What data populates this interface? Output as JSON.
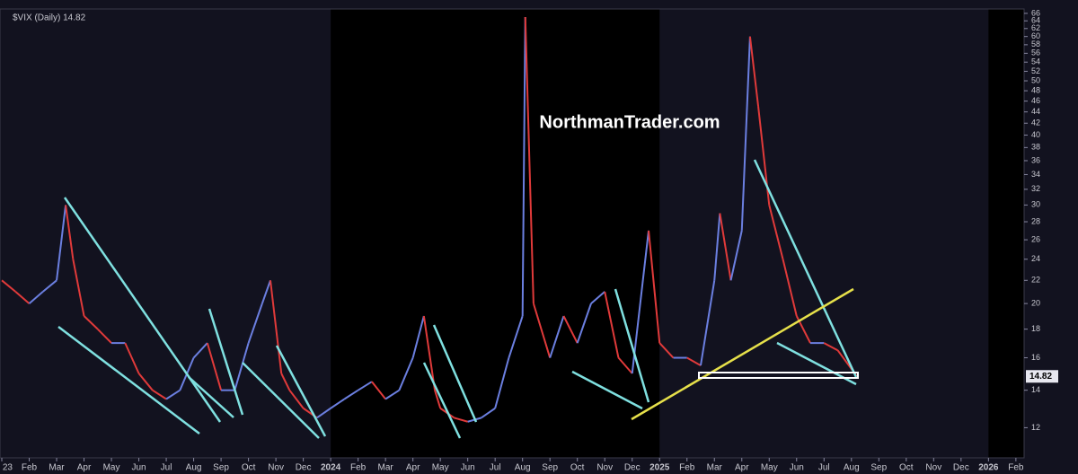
{
  "chart_data": {
    "type": "line",
    "title": "$VIX (Daily) 14.82",
    "annotation": "NorthmanTrader.com",
    "last_value": {
      "value": 14.82,
      "label": "14.82"
    },
    "log_scale": true,
    "series": [
      {
        "name": "$VIX",
        "up_color": "#6b7fe0",
        "down_color": "#e03a3a",
        "x": [
          0,
          0.5,
          1,
          1.5,
          2,
          2.33,
          2.6,
          3,
          3.5,
          4,
          4.5,
          5,
          5.5,
          6,
          6.5,
          7,
          7.5,
          8,
          8.5,
          9,
          9.5,
          9.8,
          10.2,
          10.5,
          11,
          11.5,
          12,
          12.5,
          13,
          13.5,
          14,
          14.5,
          15,
          15.4,
          15.8,
          16,
          16.5,
          17,
          17.5,
          18,
          18.5,
          19,
          19.1,
          19.4,
          20,
          20.5,
          21,
          21.5,
          22,
          22.5,
          23,
          23.6,
          24,
          24.5,
          25,
          25.5,
          26,
          26.2,
          26.6,
          27,
          27.3,
          27.6,
          28,
          28.5,
          29,
          29.5,
          30,
          30.5,
          31.2
        ],
        "values": [
          22,
          21,
          20,
          21,
          22,
          30,
          24,
          19,
          18,
          17,
          17,
          15,
          14,
          13.5,
          14,
          16,
          17,
          14,
          14,
          17,
          20,
          22,
          15,
          14,
          13,
          12.5,
          13,
          13.5,
          14,
          14.5,
          13.5,
          14,
          16,
          19,
          14,
          13,
          12.5,
          12.3,
          12.5,
          13,
          16,
          19,
          65,
          20,
          16,
          19,
          17,
          20,
          21,
          16,
          15,
          27,
          17,
          16,
          16,
          15.5,
          22,
          29,
          22,
          27,
          60,
          45,
          30,
          24,
          19,
          17,
          17,
          16.5,
          14.82
        ]
      }
    ],
    "xlim": [
      -0.066,
      37.3
    ],
    "xticks": [
      {
        "value": 0,
        "label": "23"
      },
      {
        "value": 1,
        "label": "Feb"
      },
      {
        "value": 2,
        "label": "Mar"
      },
      {
        "value": 3,
        "label": "Apr"
      },
      {
        "value": 4,
        "label": "May"
      },
      {
        "value": 5,
        "label": "Jun"
      },
      {
        "value": 6,
        "label": "Jul"
      },
      {
        "value": 7,
        "label": "Aug"
      },
      {
        "value": 8,
        "label": "Sep"
      },
      {
        "value": 9,
        "label": "Oct"
      },
      {
        "value": 10,
        "label": "Nov"
      },
      {
        "value": 11,
        "label": "Dec"
      },
      {
        "value": 12,
        "label": "2024"
      },
      {
        "value": 13,
        "label": "Feb"
      },
      {
        "value": 14,
        "label": "Mar"
      },
      {
        "value": 15,
        "label": "Apr"
      },
      {
        "value": 16,
        "label": "May"
      },
      {
        "value": 17,
        "label": "Jun"
      },
      {
        "value": 18,
        "label": "Jul"
      },
      {
        "value": 19,
        "label": "Aug"
      },
      {
        "value": 20,
        "label": "Sep"
      },
      {
        "value": 21,
        "label": "Oct"
      },
      {
        "value": 22,
        "label": "Nov"
      },
      {
        "value": 23,
        "label": "Dec"
      },
      {
        "value": 24,
        "label": "2025"
      },
      {
        "value": 25,
        "label": "Feb"
      },
      {
        "value": 26,
        "label": "Mar"
      },
      {
        "value": 27,
        "label": "Apr"
      },
      {
        "value": 28,
        "label": "May"
      },
      {
        "value": 29,
        "label": "Jun"
      },
      {
        "value": 30,
        "label": "Jul"
      },
      {
        "value": 31,
        "label": "Aug"
      },
      {
        "value": 32,
        "label": "Sep"
      },
      {
        "value": 33,
        "label": "Oct"
      },
      {
        "value": 34,
        "label": "Nov"
      },
      {
        "value": 35,
        "label": "Dec"
      },
      {
        "value": 36,
        "label": "2026"
      },
      {
        "value": 37,
        "label": "Feb"
      }
    ],
    "ylim": [
      10.6,
      67.2
    ],
    "yticks": [
      12,
      14,
      16,
      18,
      20,
      22,
      24,
      26,
      28,
      30,
      32,
      34,
      36,
      38,
      40,
      42,
      44,
      46,
      48,
      50,
      52,
      54,
      56,
      58,
      60,
      62,
      64,
      66
    ]
  }
}
